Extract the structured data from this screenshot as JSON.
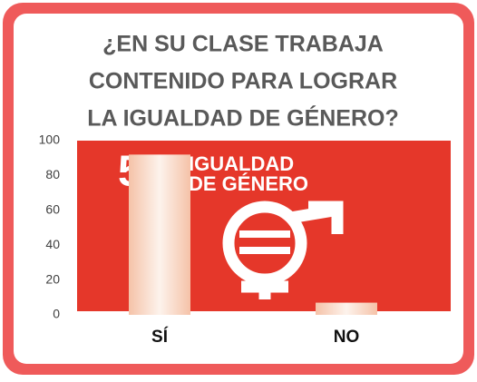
{
  "chart_data": {
    "type": "bar",
    "title": [
      "¿EN SU CLASE TRABAJA",
      "CONTENIDO PARA LOGRAR",
      "LA IGUALDAD DE GÉNERO?"
    ],
    "background_image": {
      "number": "5",
      "text": [
        "IGUALDAD",
        "DE GÉNERO"
      ]
    },
    "categories": [
      "SÍ",
      "NO"
    ],
    "values": [
      92,
      7
    ],
    "color": [
      "#f5c2a8",
      "#fdf3ec"
    ],
    "ylim": [
      0,
      100
    ],
    "yticks": [
      0,
      20,
      40,
      60,
      80,
      100
    ],
    "grid": false
  }
}
